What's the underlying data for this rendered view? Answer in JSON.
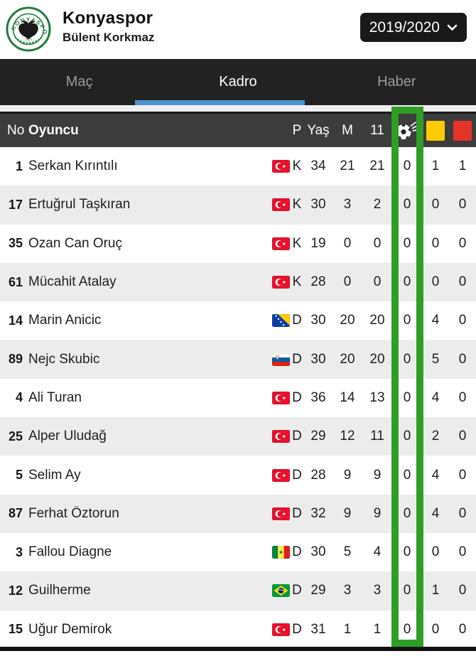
{
  "header": {
    "team": "Konyaspor",
    "manager": "Bülent Korkmaz",
    "season": "2019/2020",
    "logo": "konyaspor-club-crest"
  },
  "tabs": [
    {
      "label": "Maç",
      "active": false
    },
    {
      "label": "Kadro",
      "active": true
    },
    {
      "label": "Haber",
      "active": false
    }
  ],
  "table": {
    "header": {
      "no": "No",
      "player": "Oyuncu",
      "position": "P",
      "age": "Yaş",
      "matches": "M",
      "first_eleven": "11",
      "goals_icon": "football-icon",
      "yellow_icon": "yellow-card-icon",
      "red_icon": "red-card-icon"
    },
    "rows": [
      {
        "no": "1",
        "name": "Serkan Kırıntılı",
        "flag": "tr",
        "pos": "K",
        "age": "34",
        "m": "21",
        "s11": "21",
        "goals": "0",
        "yellow": "1",
        "red": "1"
      },
      {
        "no": "17",
        "name": "Ertuğrul Taşkıran",
        "flag": "tr",
        "pos": "K",
        "age": "30",
        "m": "3",
        "s11": "2",
        "goals": "0",
        "yellow": "0",
        "red": "0"
      },
      {
        "no": "35",
        "name": "Ozan Can Oruç",
        "flag": "tr",
        "pos": "K",
        "age": "19",
        "m": "0",
        "s11": "0",
        "goals": "0",
        "yellow": "0",
        "red": "0"
      },
      {
        "no": "61",
        "name": "Mücahit Atalay",
        "flag": "tr",
        "pos": "K",
        "age": "28",
        "m": "0",
        "s11": "0",
        "goals": "0",
        "yellow": "0",
        "red": "0"
      },
      {
        "no": "14",
        "name": "Marin Anicic",
        "flag": "ba",
        "pos": "D",
        "age": "30",
        "m": "20",
        "s11": "20",
        "goals": "0",
        "yellow": "4",
        "red": "0"
      },
      {
        "no": "89",
        "name": "Nejc Skubic",
        "flag": "si",
        "pos": "D",
        "age": "30",
        "m": "20",
        "s11": "20",
        "goals": "0",
        "yellow": "5",
        "red": "0"
      },
      {
        "no": "4",
        "name": "Ali Turan",
        "flag": "tr",
        "pos": "D",
        "age": "36",
        "m": "14",
        "s11": "13",
        "goals": "0",
        "yellow": "4",
        "red": "0"
      },
      {
        "no": "25",
        "name": "Alper Uludağ",
        "flag": "tr",
        "pos": "D",
        "age": "29",
        "m": "12",
        "s11": "11",
        "goals": "0",
        "yellow": "2",
        "red": "0"
      },
      {
        "no": "5",
        "name": "Selim Ay",
        "flag": "tr",
        "pos": "D",
        "age": "28",
        "m": "9",
        "s11": "9",
        "goals": "0",
        "yellow": "4",
        "red": "0"
      },
      {
        "no": "87",
        "name": "Ferhat Öztorun",
        "flag": "tr",
        "pos": "D",
        "age": "32",
        "m": "9",
        "s11": "9",
        "goals": "0",
        "yellow": "4",
        "red": "0"
      },
      {
        "no": "3",
        "name": "Fallou Diagne",
        "flag": "sn",
        "pos": "D",
        "age": "30",
        "m": "5",
        "s11": "4",
        "goals": "0",
        "yellow": "0",
        "red": "0"
      },
      {
        "no": "12",
        "name": "Guilherme",
        "flag": "br",
        "pos": "D",
        "age": "29",
        "m": "3",
        "s11": "3",
        "goals": "0",
        "yellow": "1",
        "red": "0"
      },
      {
        "no": "15",
        "name": "Uğur Demirok",
        "flag": "tr",
        "pos": "D",
        "age": "31",
        "m": "1",
        "s11": "1",
        "goals": "0",
        "yellow": "0",
        "red": "0"
      }
    ]
  },
  "annotation": {
    "type": "highlight-rectangle",
    "target": "goals-column"
  },
  "colors": {
    "accent_green": "#2f9e27",
    "tab_indicator_blue": "#4e91cf",
    "yellow_card": "#ffcb05",
    "red_card": "#e6332a"
  }
}
